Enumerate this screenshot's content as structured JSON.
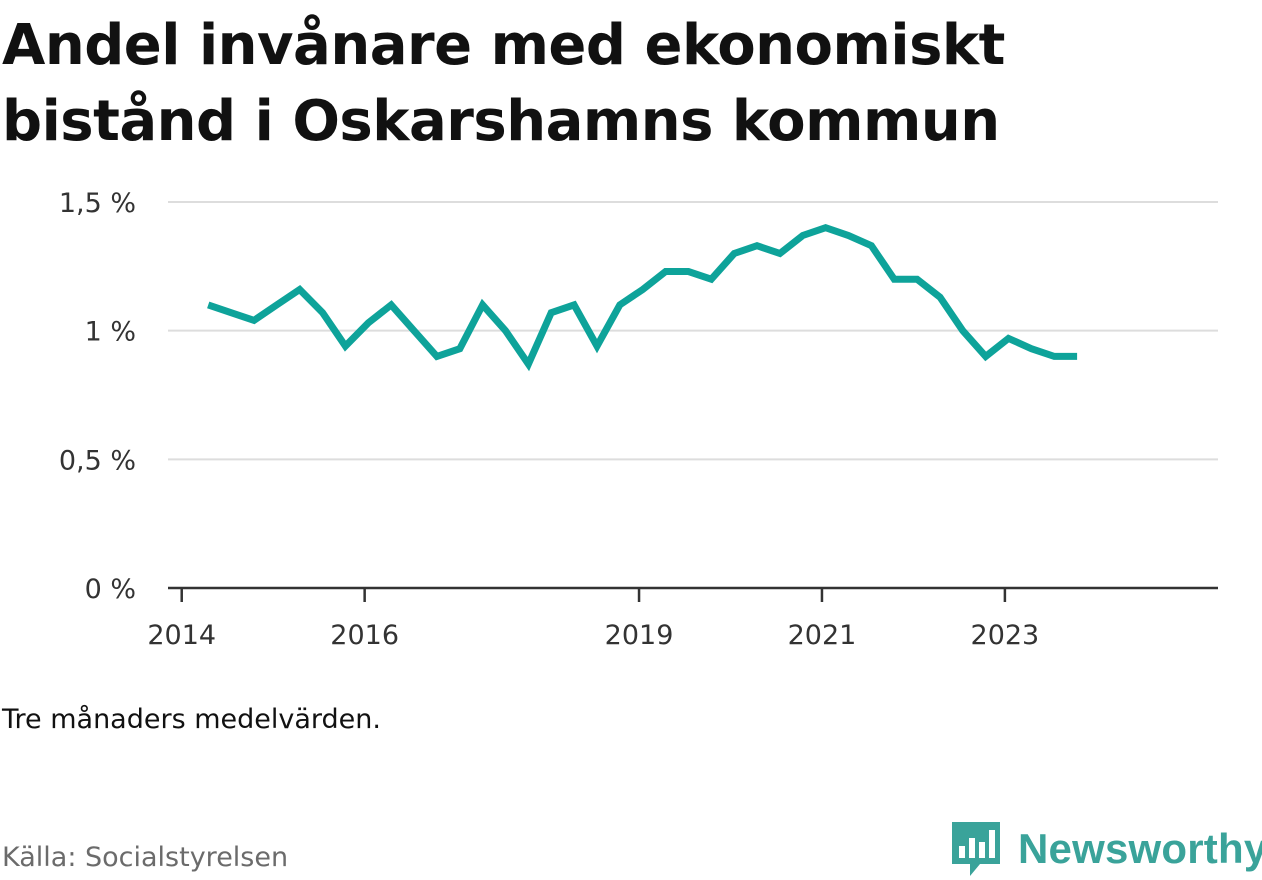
{
  "header": {
    "title": "Andel invånare med ekonomiskt bistånd i Oskarshamns kommun"
  },
  "footer": {
    "note": "Tre månaders medelvärden.",
    "source": "Källa: Socialstyrelsen",
    "brand": "Newsworthy"
  },
  "colors": {
    "line": "#0ea39a",
    "grid": "#dddddd",
    "axis": "#333333",
    "brand": "#3aa39a"
  },
  "icons": {
    "brand_logo": "bar-chart-speech-bubble-icon"
  },
  "chart_data": {
    "type": "line",
    "title": "Andel invånare med ekonomiskt bistånd i Oskarshamns kommun",
    "xlabel": "",
    "ylabel": "",
    "ylim": [
      0,
      1.5
    ],
    "grid": true,
    "y_ticks": [
      {
        "value": 0,
        "label": "0 %"
      },
      {
        "value": 0.5,
        "label": "0,5 %"
      },
      {
        "value": 1,
        "label": "1 %"
      },
      {
        "value": 1.5,
        "label": "1,5 %"
      }
    ],
    "x_ticks": [
      {
        "value": 2014.0,
        "label": "2014"
      },
      {
        "value": 2016.0,
        "label": "2016"
      },
      {
        "value": 2019.0,
        "label": "2019"
      },
      {
        "value": 2021.0,
        "label": "2021"
      },
      {
        "value": 2023.0,
        "label": "2023"
      }
    ],
    "xlim": [
      2013.85,
      2025.33
    ],
    "series": [
      {
        "x": [
          2014.29,
          2014.54,
          2014.79,
          2015.04,
          2015.29,
          2015.54,
          2015.79,
          2016.04,
          2016.29,
          2016.54,
          2016.79,
          2017.04,
          2017.29,
          2017.54,
          2017.79,
          2018.04,
          2018.29,
          2018.54,
          2018.79,
          2019.04,
          2019.29,
          2019.54,
          2019.79,
          2020.04,
          2020.29,
          2020.54,
          2020.79,
          2021.04,
          2021.29,
          2021.54,
          2021.79,
          2022.04,
          2022.29,
          2022.54,
          2022.79,
          2023.04,
          2023.29,
          2023.54,
          2023.79
        ],
        "values": [
          1.1,
          1.07,
          1.04,
          1.1,
          1.16,
          1.07,
          0.94,
          1.03,
          1.1,
          1.0,
          0.9,
          0.93,
          1.1,
          1.0,
          0.87,
          1.07,
          1.1,
          0.94,
          1.1,
          1.16,
          1.23,
          1.23,
          1.2,
          1.3,
          1.33,
          1.3,
          1.37,
          1.4,
          1.37,
          1.33,
          1.2,
          1.2,
          1.13,
          1.0,
          0.9,
          0.97,
          0.93,
          0.9,
          0.9
        ]
      }
    ]
  }
}
